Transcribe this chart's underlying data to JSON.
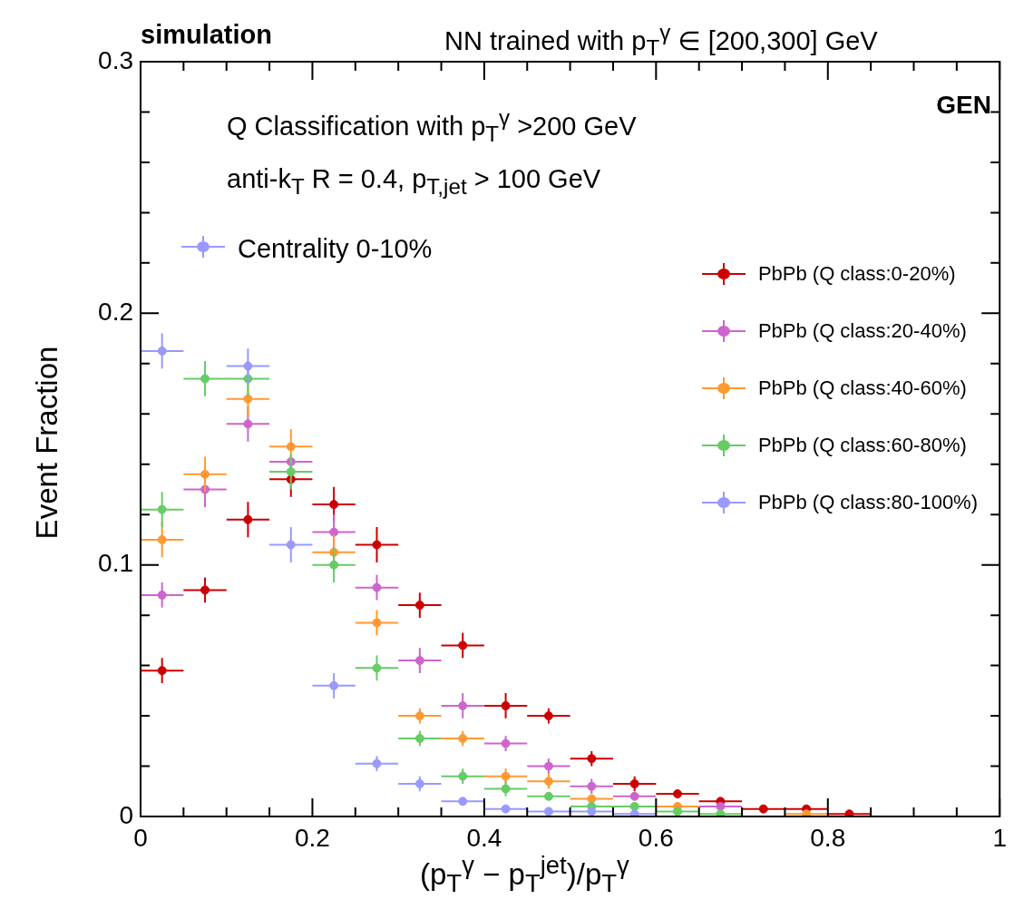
{
  "chart_data": {
    "type": "scatter",
    "title": "simulation",
    "subtitle": "NN trained with p$_{T}$$^{γ}$ ∈ [200,300] GeV",
    "xlabel": "(p$_{T}$$^{γ}$ − p$_{T}$$^{jet}$)/p$_{T}$$^{γ}$",
    "ylabel": "Event Fraction",
    "annotations": [
      "GEN",
      "Q Classification with p$_{T}$$^{γ}$ >200 GeV",
      "anti-k$_{T}$ R = 0.4, p$_{T,jet}$ > 100 GeV",
      "Centrality 0-10%"
    ],
    "x": [
      0.025,
      0.075,
      0.125,
      0.175,
      0.225,
      0.275,
      0.325,
      0.375,
      0.425,
      0.475,
      0.525,
      0.575,
      0.625,
      0.675,
      0.725,
      0.775,
      0.825
    ],
    "series": [
      {
        "name": "PbPb (Q class:0-20%)",
        "color": "#cc0000",
        "values": [
          0.058,
          0.09,
          0.118,
          0.134,
          0.124,
          0.108,
          0.084,
          0.068,
          0.044,
          0.04,
          0.023,
          0.013,
          0.009,
          0.006,
          0.003,
          0.003,
          0.001
        ],
        "errors": [
          0.005,
          0.005,
          0.007,
          0.007,
          0.007,
          0.007,
          0.005,
          0.005,
          0.005,
          0.003,
          0.003,
          0.003,
          null,
          null,
          null,
          null,
          null
        ],
        "xerrors": [
          0.025,
          0.025,
          0.025,
          0.025,
          0.025,
          0.025,
          0.025,
          0.025,
          0.025,
          0.025,
          0.025,
          0.025,
          0.025,
          0.025,
          0.025,
          0.025,
          0.025
        ]
      },
      {
        "name": "PbPb (Q class:20-40%)",
        "color": "#cc66cc",
        "values": [
          0.088,
          0.13,
          0.156,
          0.141,
          0.113,
          0.091,
          0.062,
          0.044,
          0.029,
          0.02,
          0.012,
          0.008,
          null,
          0.004,
          null,
          null,
          null
        ],
        "errors": [
          0.005,
          0.007,
          0.007,
          null,
          0.007,
          0.005,
          0.005,
          0.005,
          0.003,
          0.003,
          0.003,
          null,
          null,
          null,
          null,
          null,
          null
        ],
        "xerrors": [
          0.025,
          0.025,
          0.025,
          0.025,
          0.025,
          0.025,
          0.025,
          0.025,
          0.025,
          0.025,
          0.025,
          0.025,
          null,
          0.025,
          null,
          null,
          null
        ]
      },
      {
        "name": "PbPb (Q class:40-60%)",
        "color": "#ff9933",
        "values": [
          0.11,
          0.136,
          0.166,
          0.147,
          0.105,
          0.077,
          0.04,
          0.031,
          0.016,
          0.014,
          0.007,
          null,
          0.004,
          null,
          null,
          0.001,
          null
        ],
        "errors": [
          0.007,
          0.007,
          0.007,
          0.007,
          0.007,
          0.005,
          0.003,
          0.003,
          0.003,
          0.003,
          null,
          null,
          null,
          null,
          null,
          null,
          null
        ],
        "xerrors": [
          0.025,
          0.025,
          0.025,
          0.025,
          0.025,
          0.025,
          0.025,
          0.025,
          0.025,
          0.025,
          0.025,
          null,
          0.025,
          null,
          null,
          0.025,
          null
        ]
      },
      {
        "name": "PbPb (Q class:60-80%)",
        "color": "#66cc66",
        "values": [
          0.122,
          0.174,
          0.174,
          0.137,
          0.1,
          0.059,
          0.031,
          0.016,
          0.011,
          0.008,
          0.004,
          0.004,
          0.002,
          0.001,
          null,
          null,
          null
        ],
        "errors": [
          0.007,
          0.007,
          0.007,
          0.007,
          0.007,
          0.005,
          0.003,
          0.003,
          0.003,
          null,
          null,
          null,
          null,
          null,
          null,
          null,
          null
        ],
        "xerrors": [
          0.025,
          0.025,
          0.025,
          0.025,
          0.025,
          0.025,
          0.025,
          0.025,
          0.025,
          0.025,
          0.025,
          0.025,
          0.025,
          0.025,
          null,
          null,
          null
        ]
      },
      {
        "name": "PbPb (Q class:80-100%)",
        "color": "#9999ff",
        "values": [
          0.185,
          null,
          0.179,
          0.108,
          0.052,
          0.021,
          0.013,
          0.006,
          0.003,
          0.002,
          0.002,
          0.001,
          null,
          null,
          null,
          null,
          null
        ],
        "errors": [
          0.007,
          null,
          0.007,
          0.007,
          0.005,
          0.003,
          0.003,
          null,
          null,
          null,
          null,
          null,
          null,
          null,
          null,
          null,
          null
        ],
        "xerrors": [
          0.025,
          null,
          0.025,
          0.025,
          0.025,
          0.025,
          0.025,
          0.025,
          0.025,
          0.025,
          0.025,
          0.025,
          null,
          null,
          null,
          null,
          null
        ]
      }
    ],
    "xlim": [
      0,
      1
    ],
    "xticks": [
      0,
      {
        "value": 0.05,
        "label": null
      },
      {
        "value": 0.1,
        "label": null
      },
      {
        "value": 0.15,
        "label": null
      },
      0.2,
      {
        "value": 0.25,
        "label": null
      },
      {
        "value": 0.3,
        "label": null
      },
      {
        "value": 0.35,
        "label": null
      },
      0.4,
      {
        "value": 0.45,
        "label": null
      },
      {
        "value": 0.5,
        "label": null
      },
      {
        "value": 0.55,
        "label": null
      },
      0.6,
      {
        "value": 0.65,
        "label": null
      },
      {
        "value": 0.7,
        "label": null
      },
      {
        "value": 0.75,
        "label": null
      },
      0.8,
      {
        "value": 0.85,
        "label": null
      },
      {
        "value": 0.9,
        "label": null
      },
      {
        "value": 0.95,
        "label": null
      },
      1
    ],
    "ylim": [
      0,
      0.3
    ],
    "yticks": [
      0,
      {
        "value": 0.02,
        "label": null
      },
      {
        "value": 0.04,
        "label": null
      },
      {
        "value": 0.06,
        "label": null
      },
      {
        "value": 0.08,
        "label": null
      },
      0.1,
      {
        "value": 0.12,
        "label": null
      },
      {
        "value": 0.14,
        "label": null
      },
      {
        "value": 0.16,
        "label": null
      },
      {
        "value": 0.18,
        "label": null
      },
      0.2,
      {
        "value": 0.22,
        "label": null
      },
      {
        "value": 0.24,
        "label": null
      },
      {
        "value": 0.26,
        "label": null
      },
      {
        "value": 0.28,
        "label": null
      },
      0.3
    ],
    "legend": "top right",
    "marker": "circle"
  }
}
